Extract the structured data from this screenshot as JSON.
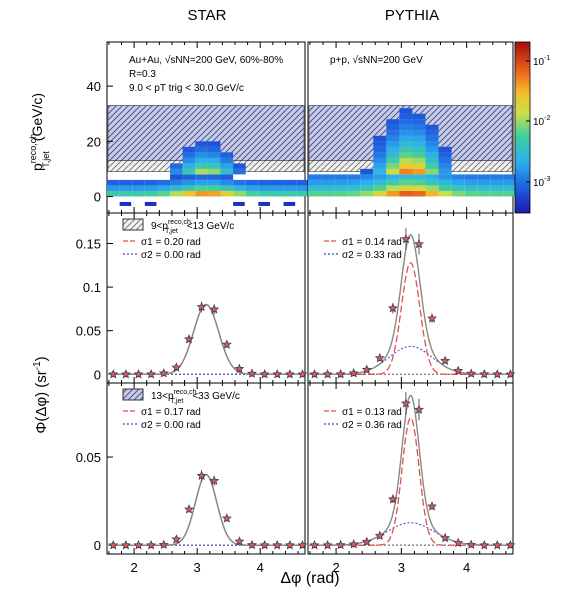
{
  "figure": {
    "col_titles": [
      "STAR",
      "PYTHIA"
    ],
    "top_ylabel_main": "p",
    "top_ylabel_sup": "reco,ch",
    "top_ylabel_sub": "T,jet",
    "top_ylabel_unit": "(GeV/c)",
    "bottom_ylabel": "Φ(Δφ)  (sr",
    "bottom_ylabel_sup": "-1",
    "bottom_ylabel_close": ")",
    "xlabel": "Δφ  (rad)"
  },
  "chart_data": [
    {
      "type": "heatmap",
      "panel": "top-left",
      "annotation_lines": [
        "Au+Au, √sNN=200 GeV, 60%-80%",
        "R=0.3",
        "9.0 < pT trig < 30.0 GeV/c"
      ],
      "xlim": [
        1.57,
        4.71
      ],
      "ylim": [
        -6,
        56
      ],
      "y_ticks": [
        0,
        20,
        40
      ],
      "hatched_bands_y": [
        [
          9,
          13
        ],
        [
          13,
          33
        ]
      ],
      "bin_width_dphi": 0.2,
      "colorbar": {
        "scale": "log",
        "range": [
          0.0003,
          0.2
        ],
        "ticks": [
          "10^-1",
          "10^-2",
          "10^-3"
        ]
      }
    },
    {
      "type": "heatmap",
      "panel": "top-right",
      "annotation_lines": [
        "p+p, √sNN=200 GeV"
      ],
      "xlim": [
        1.57,
        4.71
      ],
      "ylim": [
        -6,
        56
      ],
      "hatched_bands_y": [
        [
          9,
          13
        ],
        [
          13,
          33
        ]
      ]
    },
    {
      "type": "line",
      "panel": "middle-left",
      "legend_box": "9<pT,jet reco,ch<13 GeV/c",
      "legend": [
        {
          "label": "σ1 = 0.20 rad",
          "color": "#e0504b"
        },
        {
          "label": "σ2 = 0.00 rad",
          "color": "#4040d0"
        }
      ],
      "xlim": [
        1.57,
        4.71
      ],
      "ylim": [
        -0.01,
        0.185
      ],
      "y_ticks": [
        0,
        0.05,
        0.1,
        0.15
      ],
      "series": [
        {
          "name": "data",
          "x": [
            1.67,
            1.87,
            2.07,
            2.27,
            2.47,
            2.67,
            2.87,
            3.07,
            3.27,
            3.47,
            3.67,
            3.87,
            4.07,
            4.27,
            4.47,
            4.67
          ],
          "y": [
            0.0,
            0.0,
            0.0,
            0.0,
            0.0011,
            0.0078,
            0.0402,
            0.0772,
            0.0744,
            0.0341,
            0.0062,
            0.0008,
            0.0,
            0.0,
            0.0,
            0.0
          ]
        }
      ],
      "fit": {
        "amplitude": 0.08,
        "sigma1": 0.2,
        "sigma2": 0.0,
        "narrow_fraction": 1.0
      }
    },
    {
      "type": "line",
      "panel": "middle-right",
      "legend": [
        {
          "label": "σ1 = 0.14 rad",
          "color": "#e0504b"
        },
        {
          "label": "σ2 = 0.33 rad",
          "color": "#4040d0"
        }
      ],
      "xlim": [
        1.57,
        4.71
      ],
      "ylim": [
        -0.01,
        0.185
      ],
      "series": [
        {
          "name": "data",
          "x": [
            1.67,
            1.87,
            2.07,
            2.27,
            2.47,
            2.67,
            2.87,
            3.07,
            3.27,
            3.47,
            3.67,
            3.87,
            4.07,
            4.27,
            4.47,
            4.67
          ],
          "y": [
            0.0,
            0.0,
            0.0001,
            0.0012,
            0.0053,
            0.0186,
            0.0758,
            0.1551,
            0.1493,
            0.0641,
            0.0155,
            0.004,
            0.0008,
            0.0001,
            0.0,
            0.0
          ]
        }
      ],
      "fit": {
        "amplitude": 0.16,
        "sigma1": 0.14,
        "sigma2": 0.33,
        "narrow_fraction": 0.8
      }
    },
    {
      "type": "line",
      "panel": "bottom-left",
      "legend_box": "13<pT,jet reco,ch<33 GeV/c",
      "legend": [
        {
          "label": "σ1 = 0.17 rad",
          "color": "#e0504b"
        },
        {
          "label": "σ2 = 0.00 rad",
          "color": "#4040d0"
        }
      ],
      "xlim": [
        1.57,
        4.71
      ],
      "ylim": [
        -0.005,
        0.092
      ],
      "y_ticks": [
        0,
        0.05
      ],
      "x_ticks": [
        2,
        3,
        4
      ],
      "series": [
        {
          "name": "data",
          "x": [
            1.67,
            1.87,
            2.07,
            2.27,
            2.47,
            2.67,
            2.87,
            3.07,
            3.27,
            3.47,
            3.67,
            3.87,
            4.07,
            4.27,
            4.47,
            4.67
          ],
          "y": [
            0.0,
            0.0,
            0.0,
            0.0,
            0.0002,
            0.0033,
            0.0203,
            0.0394,
            0.0365,
            0.0152,
            0.0021,
            0.0001,
            0.0,
            0.0,
            0.0,
            0.0
          ]
        }
      ],
      "fit": {
        "amplitude": 0.04,
        "sigma1": 0.17,
        "sigma2": 0.0,
        "narrow_fraction": 1.0
      }
    },
    {
      "type": "line",
      "panel": "bottom-right",
      "legend": [
        {
          "label": "σ1 = 0.13 rad",
          "color": "#e0504b"
        },
        {
          "label": "σ2 = 0.36 rad",
          "color": "#4040d0"
        }
      ],
      "xlim": [
        1.57,
        4.71
      ],
      "ylim": [
        -0.005,
        0.092
      ],
      "x_ticks": [
        2,
        3,
        4
      ],
      "series": [
        {
          "name": "data",
          "x": [
            1.67,
            1.87,
            2.07,
            2.27,
            2.47,
            2.67,
            2.87,
            3.07,
            3.27,
            3.47,
            3.67,
            3.87,
            4.07,
            4.27,
            4.47,
            4.67
          ],
          "y": [
            0.0,
            0.0,
            0.0001,
            0.0005,
            0.0019,
            0.0053,
            0.0261,
            0.0804,
            0.0769,
            0.022,
            0.0041,
            0.0013,
            0.0003,
            0.0,
            0.0,
            0.0
          ]
        }
      ],
      "fit": {
        "amplitude": 0.085,
        "sigma1": 0.13,
        "sigma2": 0.36,
        "narrow_fraction": 0.85
      }
    }
  ]
}
